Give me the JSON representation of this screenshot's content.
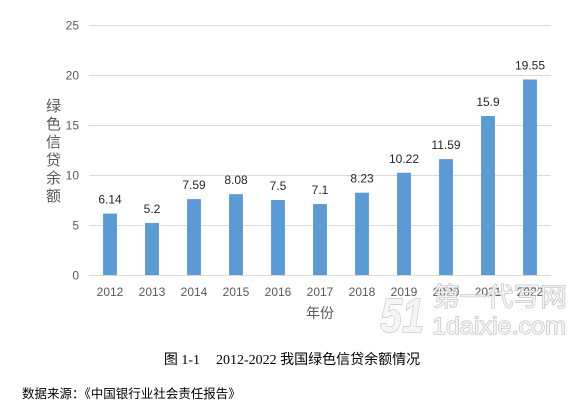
{
  "chart_data": {
    "type": "bar",
    "categories": [
      "2012",
      "2013",
      "2014",
      "2015",
      "2016",
      "2017",
      "2018",
      "2019",
      "2020",
      "2021",
      "2022"
    ],
    "values": [
      6.14,
      5.2,
      7.59,
      8.08,
      7.5,
      7.1,
      8.23,
      10.22,
      11.59,
      15.9,
      19.55
    ],
    "xlabel": "年份",
    "ylabel": "绿色信贷余额",
    "ylim": [
      0,
      25
    ],
    "yticks": [
      0,
      5,
      10,
      15,
      20,
      25
    ],
    "grid": true,
    "bar_color": "#5B9BD5"
  },
  "caption": {
    "figure_number": "图 1-1",
    "text": "2012-2022 我国绿色信贷余额情况"
  },
  "source": "数据来源：《中国银行业社会责任报告》",
  "watermark": {
    "logo": "51",
    "name": "第一代写网",
    "site": "1daixie.com"
  }
}
